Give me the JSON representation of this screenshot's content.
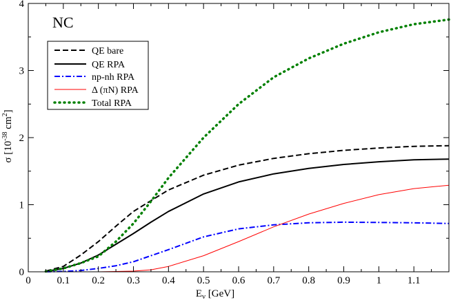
{
  "chart_data": {
    "type": "line",
    "title": "NC",
    "xlabel_main": "E",
    "xlabel_sub": "ν",
    "xlabel_unit": " [GeV]",
    "ylabel_main": "σ [10",
    "ylabel_exp1": "-38",
    "ylabel_mid": " cm",
    "ylabel_exp2": "2",
    "ylabel_end": "]",
    "xlim": [
      0,
      1.2
    ],
    "ylim": [
      0,
      4
    ],
    "x_ticks": [
      "0",
      "0.1",
      "0.2",
      "0.3",
      "0.4",
      "0.5",
      "0.6",
      "0.7",
      "0.8",
      "0.9",
      "1",
      "1.1"
    ],
    "x_tick_values": [
      0,
      0.1,
      0.2,
      0.3,
      0.4,
      0.5,
      0.6,
      0.7,
      0.8,
      0.9,
      1.0,
      1.1
    ],
    "y_ticks": [
      "0",
      "1",
      "2",
      "3",
      "4"
    ],
    "y_tick_values": [
      0,
      1,
      2,
      3,
      4
    ],
    "series": [
      {
        "name": "QE bare",
        "style": "dashed",
        "color": "#000000",
        "x": [
          0.05,
          0.1,
          0.15,
          0.2,
          0.25,
          0.3,
          0.35,
          0.4,
          0.5,
          0.6,
          0.7,
          0.8,
          0.9,
          1.0,
          1.1,
          1.2
        ],
        "y": [
          0.01,
          0.08,
          0.25,
          0.45,
          0.68,
          0.9,
          1.06,
          1.22,
          1.44,
          1.59,
          1.69,
          1.76,
          1.81,
          1.845,
          1.87,
          1.88
        ]
      },
      {
        "name": "QE RPA",
        "style": "solid",
        "color": "#000000",
        "x": [
          0.05,
          0.1,
          0.15,
          0.2,
          0.25,
          0.3,
          0.35,
          0.4,
          0.5,
          0.6,
          0.7,
          0.8,
          0.9,
          1.0,
          1.1,
          1.2
        ],
        "y": [
          0.005,
          0.05,
          0.13,
          0.25,
          0.41,
          0.57,
          0.74,
          0.9,
          1.16,
          1.34,
          1.46,
          1.54,
          1.6,
          1.64,
          1.67,
          1.68
        ]
      },
      {
        "name": "np-nh RPA",
        "style": "dashdot",
        "color": "#0000ff",
        "x": [
          0.05,
          0.1,
          0.15,
          0.2,
          0.25,
          0.3,
          0.35,
          0.4,
          0.5,
          0.6,
          0.7,
          0.8,
          0.9,
          1.0,
          1.1,
          1.2
        ],
        "y": [
          0.0,
          0.005,
          0.02,
          0.05,
          0.09,
          0.15,
          0.24,
          0.33,
          0.52,
          0.64,
          0.7,
          0.73,
          0.74,
          0.735,
          0.73,
          0.72
        ]
      },
      {
        "name": "Δ (πN) RPA",
        "style": "solid-thin",
        "color": "#ff0000",
        "x": [
          0.05,
          0.1,
          0.2,
          0.3,
          0.35,
          0.4,
          0.5,
          0.6,
          0.7,
          0.8,
          0.9,
          1.0,
          1.1,
          1.2
        ],
        "y": [
          0.0,
          0.0,
          0.0,
          0.01,
          0.03,
          0.08,
          0.24,
          0.45,
          0.67,
          0.86,
          1.02,
          1.15,
          1.24,
          1.29
        ]
      },
      {
        "name": "Total RPA",
        "style": "dotted",
        "color": "#008000",
        "x": [
          0.05,
          0.1,
          0.15,
          0.2,
          0.25,
          0.3,
          0.35,
          0.4,
          0.5,
          0.6,
          0.7,
          0.8,
          0.9,
          1.0,
          1.1,
          1.2
        ],
        "y": [
          0.005,
          0.05,
          0.13,
          0.23,
          0.45,
          0.72,
          1.05,
          1.4,
          2.0,
          2.5,
          2.9,
          3.18,
          3.4,
          3.57,
          3.69,
          3.76
        ]
      }
    ],
    "legend": {
      "position": "top-left",
      "entries": [
        "QE bare",
        "QE RPA",
        "np-nh RPA",
        "Δ (πN) RPA",
        "Total RPA"
      ]
    }
  }
}
